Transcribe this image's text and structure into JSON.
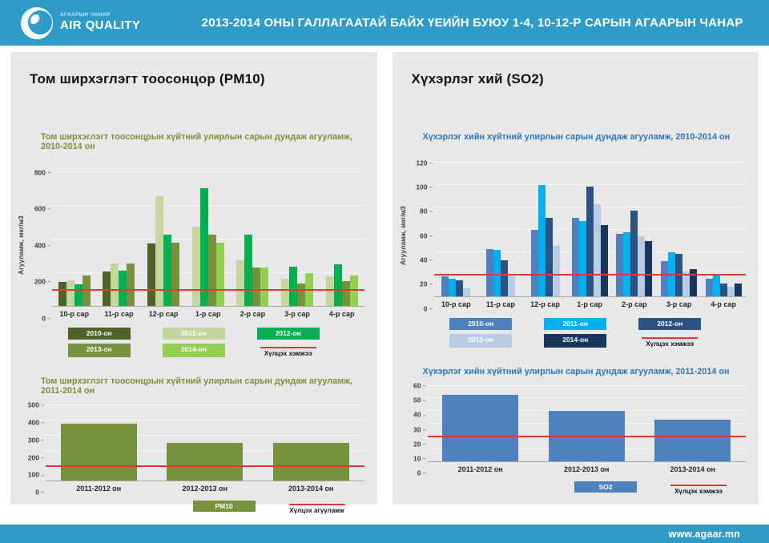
{
  "header": {
    "logo_subtitle": "АГААРЫН ЧАНАР",
    "logo_title": "AIR QUALITY",
    "title": "2013-2014 ОНЫ ГАЛЛАГААТАЙ БАЙХ ҮЕИЙН БУЮУ 1-4, 10-12-Р САРЫН АГААРЫН ЧАНАР"
  },
  "footer": {
    "website": "www.agaar.mn"
  },
  "panels": [
    {
      "heading": "Том ширхэглэгт тоосонцор (PM10)"
    },
    {
      "heading": "Хүхэрлэг хий (SO2)"
    }
  ],
  "colors": {
    "header_bg": "#2F9BC9",
    "card_bg": "#E8E8E8",
    "threshold_red": "#E0392F",
    "pm10_accent": "#76923C",
    "so2_accent": "#2E75B6"
  },
  "chart_data": [
    {
      "type": "bar",
      "title": "Том ширхэглэгт тоосонцрын хүйтний улирлын сарын дундаж агууламж, 2010-2014 он",
      "title_color": "#76923C",
      "ylabel": "Агууламж, мкг/м3",
      "categories": [
        "10-р сар",
        "11-р сар",
        "12-р сар",
        "1-р сар",
        "2-р сар",
        "3-р сар",
        "4-р сар"
      ],
      "series": [
        {
          "name": "2010-он",
          "color": "#4F6228",
          "values": [
            150,
            210,
            375,
            null,
            null,
            null,
            null
          ]
        },
        {
          "name": "2011-он",
          "color": "#C3D69B",
          "values": [
            155,
            255,
            655,
            475,
            275,
            165,
            180
          ]
        },
        {
          "name": "2012-он",
          "color": "#00B050",
          "values": [
            135,
            215,
            430,
            705,
            430,
            240,
            253
          ]
        },
        {
          "name": "2013-он",
          "color": "#76923C",
          "values": [
            185,
            255,
            380,
            430,
            235,
            140,
            152
          ]
        },
        {
          "name": "2014-он",
          "color": "#92D050",
          "values": [
            null,
            null,
            null,
            380,
            235,
            200,
            185
          ]
        }
      ],
      "ylim": [
        0,
        800
      ],
      "yticks": [
        0,
        200,
        400,
        600,
        800
      ],
      "grid": true,
      "legend_position": "bottom-center",
      "threshold": {
        "value": 100,
        "label": "Хүлцэх хэмжээ",
        "color": "#E0392F"
      }
    },
    {
      "type": "bar",
      "title": "Хүхэрлэг хийн хүйтний улирлын сарын дундаж агууламж, 2010-2014 он",
      "title_color": "#2E75B6",
      "ylabel": "Агууламж, мкг/м3",
      "categories": [
        "10-р сар",
        "11-р сар",
        "12-р сар",
        "1-р сар",
        "2-р сар",
        "3-р сар",
        "4-р сар"
      ],
      "series": [
        {
          "name": "2010-он",
          "color": "#4F81BD",
          "values": [
            18.5,
            43,
            60,
            71,
            56.5,
            32.5,
            16.5
          ]
        },
        {
          "name": "2011-он",
          "color": "#00B0F0",
          "values": [
            16.5,
            42,
            100,
            68,
            58,
            40,
            20.5
          ]
        },
        {
          "name": "2012-он",
          "color": "#2C5183",
          "values": [
            15,
            33,
            71,
            98.5,
            77,
            38.5,
            12.5
          ]
        },
        {
          "name": "2013-он",
          "color": "#B8CCE4",
          "values": [
            8,
            18.5,
            46,
            83,
            54.5,
            23,
            9
          ]
        },
        {
          "name": "2014-он",
          "color": "#17375E",
          "values": [
            null,
            null,
            null,
            64.5,
            50,
            25,
            12.5
          ]
        }
      ],
      "ylim": [
        0,
        120
      ],
      "yticks": [
        0,
        20,
        40,
        60,
        80,
        100,
        120
      ],
      "grid": true,
      "legend_position": "bottom-center",
      "threshold": {
        "value": 20,
        "label": "Хүлцэх хэмжээ",
        "color": "#E0392F"
      }
    },
    {
      "type": "bar",
      "title": "Том ширхэглэгт тоосонцрын хүйтний улирлын сарын дундаж агууламж, 2011-2014 он",
      "title_color": "#76923C",
      "ylabel": "",
      "categories": [
        "2011-2012 он",
        "2012-2013 он",
        "2013-2014 он"
      ],
      "series": [
        {
          "name": "PM10",
          "color": "#76923C",
          "values": [
            375,
            250,
            250
          ]
        }
      ],
      "ylim": [
        0,
        500
      ],
      "yticks": [
        0,
        100,
        200,
        300,
        400,
        500
      ],
      "grid": true,
      "legend_position": "bottom-right",
      "threshold": {
        "value": 100,
        "label": "Хүлцэх агууламж",
        "color": "#E0392F"
      }
    },
    {
      "type": "bar",
      "title": "Хүхэрлэг хийн хүйтний улирлын сарын дундаж агууламж, 2011-2014 он",
      "title_color": "#2E75B6",
      "ylabel": "",
      "categories": [
        "2011-2012 он",
        "2012-2013 он",
        "2013-2014 он"
      ],
      "series": [
        {
          "name": "SO2",
          "color": "#4F81BD",
          "values": [
            53,
            40,
            33
          ]
        }
      ],
      "ylim": [
        0,
        60
      ],
      "yticks": [
        0,
        10,
        20,
        30,
        40,
        50,
        60
      ],
      "grid": true,
      "legend_position": "bottom-right",
      "threshold": {
        "value": 20,
        "label": "Хүлцэх хэмжээ",
        "color": "#E0392F"
      }
    }
  ]
}
